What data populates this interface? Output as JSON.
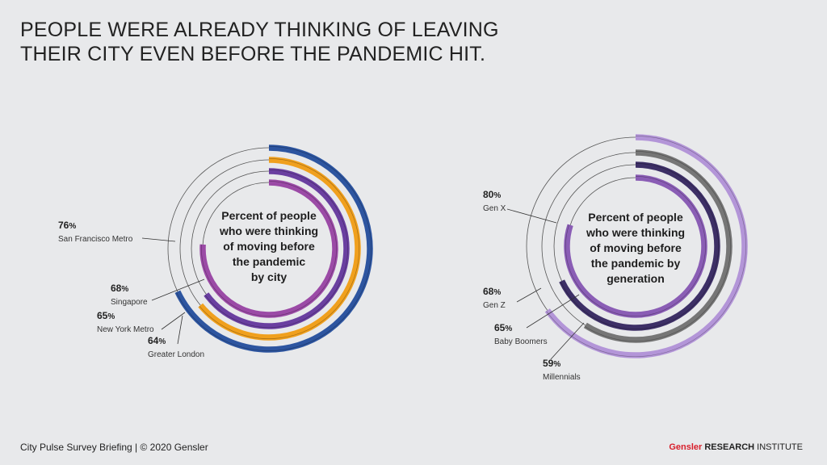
{
  "title_lines": [
    "PEOPLE WERE ALREADY THINKING OF LEAVING",
    "THEIR CITY EVEN BEFORE THE PANDEMIC HIT."
  ],
  "footer": {
    "left": "City Pulse Survey Briefing  |  © 2020 Gensler",
    "brand": "Gensler",
    "research": "RESEARCH",
    "institute": "INSTITUTE"
  },
  "chart_data": [
    {
      "type": "radial-bar",
      "center_label": [
        "Percent of people",
        "who were thinking",
        "of moving before",
        "the pandemic",
        "by city"
      ],
      "unit": "%",
      "series": [
        {
          "name": "San Francisco Metro",
          "value": 76,
          "color": "#9b4aa6"
        },
        {
          "name": "Singapore",
          "value": 68,
          "color": "#2d55a0"
        },
        {
          "name": "New York Metro",
          "value": 65,
          "color": "#6a3fa0"
        },
        {
          "name": "Greater London",
          "value": 64,
          "color": "#f0a01e"
        }
      ]
    },
    {
      "type": "radial-bar",
      "center_label": [
        "Percent of people",
        "who were thinking",
        "of moving before",
        "the pandemic by",
        "generation"
      ],
      "unit": "%",
      "series": [
        {
          "name": "Gen X",
          "value": 80,
          "color": "#8a5db5"
        },
        {
          "name": "Gen Z",
          "value": 68,
          "color": "#3d2f66"
        },
        {
          "name": "Baby Boomers",
          "value": 65,
          "color": "#b395d8"
        },
        {
          "name": "Millennials",
          "value": 59,
          "color": "#767676"
        }
      ]
    }
  ]
}
